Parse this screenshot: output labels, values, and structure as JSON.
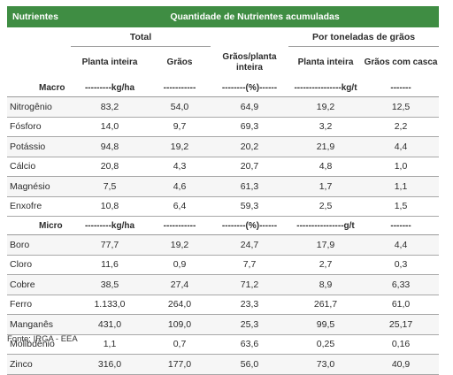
{
  "header": {
    "nutrientes": "Nutrientes",
    "quantidade": "Quantidade de Nutrientes acumuladas"
  },
  "subheader": {
    "total": "Total",
    "por_tonelada": "Por toneladas de grãos"
  },
  "columns": [
    "Planta inteira",
    "Grãos",
    "Grãos/planta inteira",
    "Planta inteira",
    "Grãos com casca"
  ],
  "macro": {
    "label": "Macro",
    "units": [
      "---------kg/ha",
      "-----------",
      "--------(%)------",
      "----------------kg/t",
      "-------"
    ],
    "rows": [
      [
        "Nitrogênio",
        "83,2",
        "54,0",
        "64,9",
        "19,2",
        "12,5"
      ],
      [
        "Fósforo",
        "14,0",
        "9,7",
        "69,3",
        "3,2",
        "2,2"
      ],
      [
        "Potássio",
        "94,8",
        "19,2",
        "20,2",
        "21,9",
        "4,4"
      ],
      [
        "Cálcio",
        "20,8",
        "4,3",
        "20,7",
        "4,8",
        "1,0"
      ],
      [
        "Magnésio",
        "7,5",
        "4,6",
        "61,3",
        "1,7",
        "1,1"
      ],
      [
        "Enxofre",
        "10,8",
        "6,4",
        "59,3",
        "2,5",
        "1,5"
      ]
    ]
  },
  "micro": {
    "label": "Micro",
    "units": [
      "---------kg/ha",
      "-----------",
      "--------(%)------",
      "----------------g/t",
      "-------"
    ],
    "rows": [
      [
        "Boro",
        "77,7",
        "19,2",
        "24,7",
        "17,9",
        "4,4"
      ],
      [
        "Cloro",
        "11,6",
        "0,9",
        "7,7",
        "2,7",
        "0,3"
      ],
      [
        "Cobre",
        "38,5",
        "27,4",
        "71,2",
        "8,9",
        "6,33"
      ],
      [
        "Ferro",
        "1.133,0",
        "264,0",
        "23,3",
        "261,7",
        "61,0"
      ],
      [
        "Manganês",
        "431,0",
        "109,0",
        "25,3",
        "99,5",
        "25,17"
      ],
      [
        "Molibdênio",
        "1,1",
        "0,7",
        "63,6",
        "0,25",
        "0,16"
      ],
      [
        "Zinco",
        "316,0",
        "177,0",
        "56,0",
        "73,0",
        "40,9"
      ]
    ]
  },
  "source": "Fonte: IRGA - EEA"
}
